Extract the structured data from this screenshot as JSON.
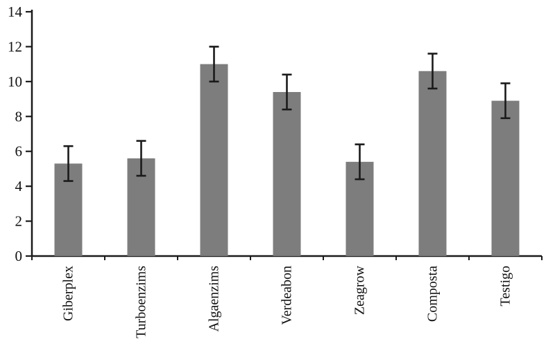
{
  "chart_data": {
    "type": "bar",
    "categories": [
      "Giberplex",
      "Turboenzims",
      "Algaenzims",
      "Verdeabon",
      "Zeagrow",
      "Composta",
      "Testigo"
    ],
    "values": [
      5.3,
      5.6,
      11.0,
      9.4,
      5.4,
      10.6,
      8.9
    ],
    "error_bars": [
      1.0,
      1.0,
      1.0,
      1.0,
      1.0,
      1.0,
      1.0
    ],
    "title": "",
    "xlabel": "",
    "ylabel": "",
    "ylim": [
      0,
      14
    ],
    "ytick_step": 2,
    "ytick_labels": [
      "0",
      "2",
      "4",
      "6",
      "8",
      "10",
      "12",
      "14"
    ],
    "grid": false,
    "legend_position": "none",
    "bar_color": "#7d7d7d",
    "error_color": "#1a1a1a",
    "axis_color": "#1a1a1a",
    "label_color": "#111111"
  }
}
